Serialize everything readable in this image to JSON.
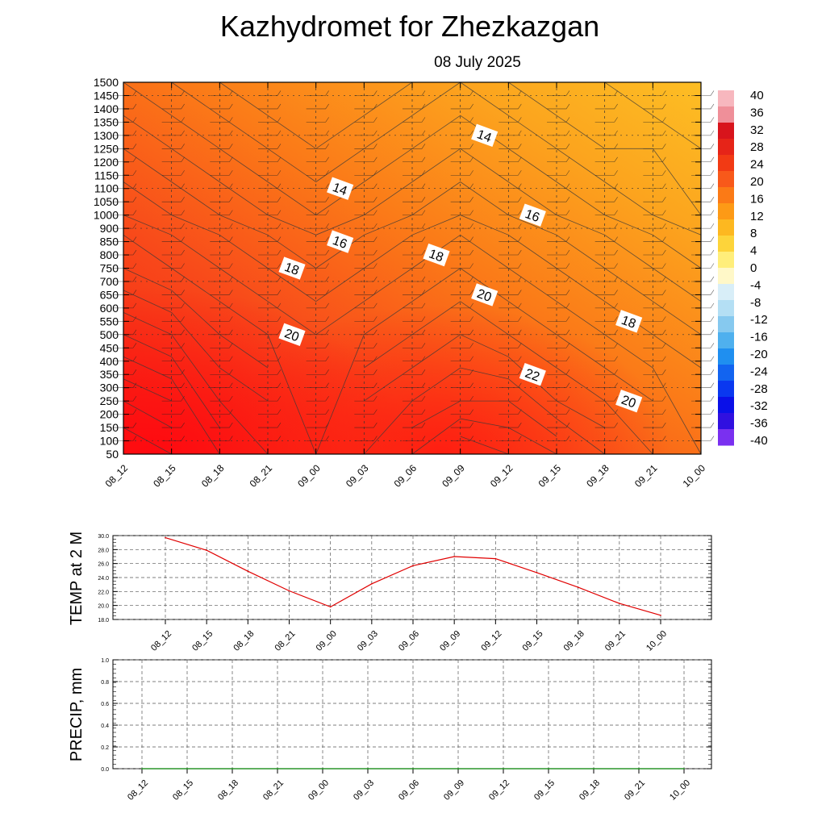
{
  "title": "Kazhydromet  for Zhezkazgan",
  "subtitle": "08 July 2025",
  "time_labels": [
    "08_12",
    "08_15",
    "08_18",
    "08_21",
    "09_00",
    "09_03",
    "09_06",
    "09_09",
    "09_12",
    "09_15",
    "09_18",
    "09_21",
    "10_00"
  ],
  "chart_data": [
    {
      "type": "heatmap",
      "title": "Kazhydromet  for Zhezkazgan",
      "subtitle": "08 July 2025",
      "x": [
        "08_12",
        "08_15",
        "08_18",
        "08_21",
        "09_00",
        "09_03",
        "09_06",
        "09_09",
        "09_12",
        "09_15",
        "09_18",
        "09_21",
        "10_00"
      ],
      "y_levels": [
        50,
        100,
        150,
        200,
        250,
        300,
        350,
        400,
        450,
        500,
        550,
        600,
        650,
        700,
        750,
        800,
        850,
        900,
        1000,
        1050,
        1100,
        1150,
        1200,
        1250,
        1300,
        1350,
        1400,
        1450,
        1500
      ],
      "temperature_contour_labels": [
        {
          "x": "09_00",
          "y": 1100,
          "value": "14"
        },
        {
          "x": "09_09",
          "y": 1300,
          "value": "14"
        },
        {
          "x": "09_12",
          "y": 1000,
          "value": "16"
        },
        {
          "x": "10_00",
          "y": 1000,
          "value": "14"
        },
        {
          "x": "09_00",
          "y": 850,
          "value": "16"
        },
        {
          "x": "08_21",
          "y": 750,
          "value": "18"
        },
        {
          "x": "09_06",
          "y": 800,
          "value": "18"
        },
        {
          "x": "09_09",
          "y": 650,
          "value": "20"
        },
        {
          "x": "09_18",
          "y": 550,
          "value": "18"
        },
        {
          "x": "08_21",
          "y": 500,
          "value": "20"
        },
        {
          "x": "09_12",
          "y": 350,
          "value": "22"
        },
        {
          "x": "09_18",
          "y": 250,
          "value": "20"
        }
      ],
      "temperature_field": {
        "levels": [
          50,
          250,
          500,
          750,
          1000,
          1250,
          1500
        ],
        "values": [
          [
            29,
            27,
            24,
            21,
            19,
            17,
            15
          ],
          [
            28,
            26,
            23,
            20,
            18,
            16,
            14
          ],
          [
            25,
            23,
            21,
            19,
            17,
            15,
            13
          ],
          [
            23,
            22,
            20,
            18,
            16,
            14,
            12
          ],
          [
            20,
            20,
            19,
            17,
            15,
            13,
            12
          ],
          [
            23,
            22,
            20,
            18,
            16,
            14,
            12
          ],
          [
            25,
            23,
            21,
            19,
            17,
            15,
            13
          ],
          [
            27,
            24,
            22,
            20,
            18,
            16,
            14
          ],
          [
            26,
            24,
            21,
            19,
            17,
            15,
            13
          ],
          [
            25,
            22,
            20,
            18,
            16,
            14,
            12
          ],
          [
            23,
            21,
            19,
            17,
            15,
            13,
            12
          ],
          [
            21,
            20,
            18,
            16,
            14,
            13,
            11
          ],
          [
            19,
            19,
            17,
            15,
            13,
            12,
            11
          ]
        ]
      },
      "colorbar": {
        "ticks": [
          "40",
          "36",
          "32",
          "28",
          "24",
          "20",
          "16",
          "12",
          "8",
          "4",
          "0",
          "-4",
          "-8",
          "-12",
          "-16",
          "-20",
          "-24",
          "-28",
          "-32",
          "-36",
          "-40"
        ],
        "colors": [
          "#f7b7be",
          "#ef8f99",
          "#d8141c",
          "#e62418",
          "#f23a14",
          "#f8591a",
          "#fb7a16",
          "#fd9a16",
          "#fdb820",
          "#fdd43a",
          "#ffee7a",
          "#fff8c8",
          "#d8eef8",
          "#b4dff4",
          "#86c9ef",
          "#4fb0ee",
          "#1f8ff0",
          "#1264f0",
          "#0a38f0",
          "#0a10e8",
          "#3010e0",
          "#7a30f0"
        ]
      }
    },
    {
      "type": "line",
      "ylabel": "TEMP at 2 M",
      "x": [
        "08_12",
        "08_15",
        "08_18",
        "08_21",
        "09_00",
        "09_03",
        "09_06",
        "09_09",
        "09_12",
        "09_15",
        "09_18",
        "09_21",
        "10_00"
      ],
      "series": [
        {
          "values": [
            29.7,
            27.9,
            24.9,
            22.1,
            19.8,
            23.1,
            25.7,
            27.0,
            26.7,
            24.7,
            22.6,
            20.3,
            18.6
          ],
          "color": "#e00000"
        }
      ],
      "ylim": [
        18.0,
        30.0
      ],
      "yticks": [
        "30.0",
        "28.0",
        "26.0",
        "24.0",
        "22.0",
        "20.0",
        "18.0"
      ],
      "grid": true
    },
    {
      "type": "line",
      "ylabel": "PRECIP, mm",
      "x": [
        "08_12",
        "08_15",
        "08_18",
        "08_21",
        "09_00",
        "09_03",
        "09_06",
        "09_09",
        "09_12",
        "09_15",
        "09_18",
        "09_21",
        "10_00"
      ],
      "series": [
        {
          "values": [
            0,
            0,
            0,
            0,
            0,
            0,
            0,
            0,
            0,
            0,
            0,
            0,
            0
          ],
          "color": "#008000"
        }
      ],
      "ylim": [
        0.0,
        1.0
      ],
      "yticks": [
        "1.0",
        "0.8",
        "0.6",
        "0.4",
        "0.2",
        "0.0"
      ],
      "grid": true
    }
  ]
}
